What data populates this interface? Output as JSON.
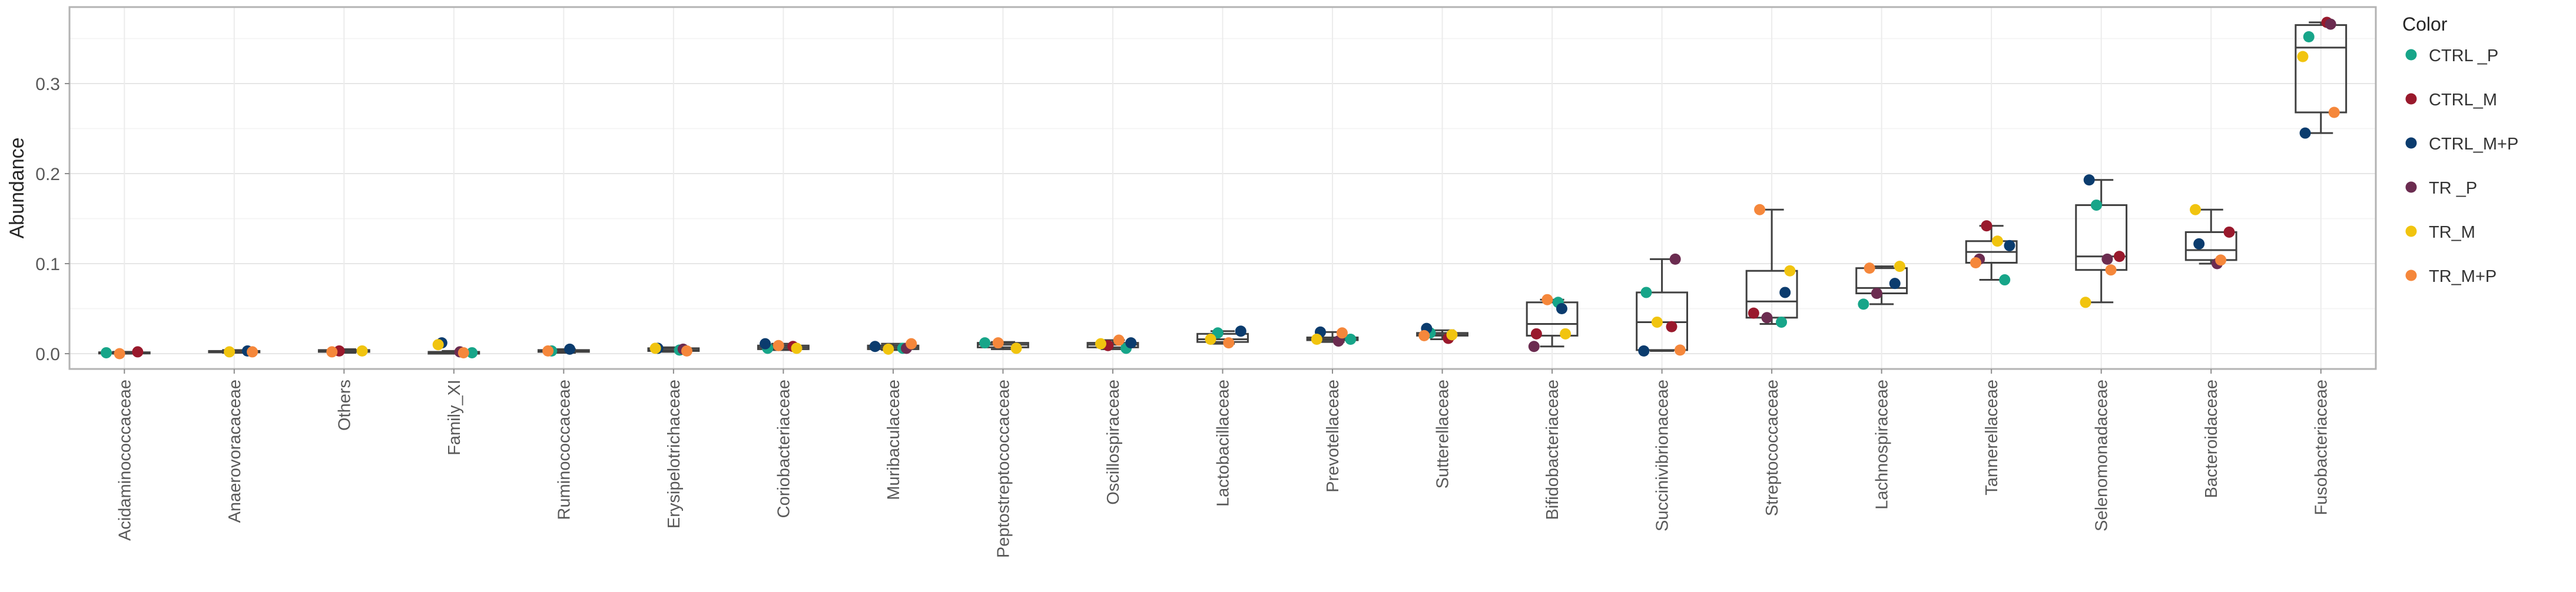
{
  "chart_data": {
    "type": "boxplot",
    "ylabel": "Abundance",
    "xlabel": "",
    "ylim": [
      -0.017,
      0.385
    ],
    "yticks": [
      0.0,
      0.1,
      0.2,
      0.3
    ],
    "ytick_labels": [
      "0.0",
      "0.1",
      "0.2",
      "0.3"
    ],
    "grid": true,
    "legend": {
      "title": "Color",
      "position": "right",
      "entries": [
        {
          "name": "CTRL _P",
          "color": "#17a589"
        },
        {
          "name": "CTRL_M",
          "color": "#99192c"
        },
        {
          "name": "CTRL_M+P",
          "color": "#0b3c6e"
        },
        {
          "name": "TR _P",
          "color": "#6b2c50"
        },
        {
          "name": "TR_M",
          "color": "#f1c40f"
        },
        {
          "name": "TR_M+P",
          "color": "#f5873b"
        }
      ]
    },
    "categories": [
      {
        "label": "Acidaminococcaceae",
        "box": {
          "min": 0.0,
          "q1": 0.0005,
          "median": 0.001,
          "q3": 0.0015,
          "max": 0.002
        },
        "points": [
          {
            "series": "CTRL _P",
            "value": 0.001
          },
          {
            "series": "CTRL_M",
            "value": 0.002
          },
          {
            "series": "TR_M+P",
            "value": 0.0
          }
        ]
      },
      {
        "label": "Anaerovoracaceae",
        "box": {
          "min": 0.001,
          "q1": 0.0015,
          "median": 0.002,
          "q3": 0.003,
          "max": 0.004
        },
        "points": [
          {
            "series": "CTRL_M+P",
            "value": 0.003
          },
          {
            "series": "TR_M",
            "value": 0.002
          },
          {
            "series": "TR_M+P",
            "value": 0.002
          }
        ]
      },
      {
        "label": "Others",
        "box": {
          "min": 0.001,
          "q1": 0.002,
          "median": 0.003,
          "q3": 0.004,
          "max": 0.005
        },
        "points": [
          {
            "series": "CTRL_M",
            "value": 0.003
          },
          {
            "series": "TR_M",
            "value": 0.003
          },
          {
            "series": "TR_M+P",
            "value": 0.002
          }
        ]
      },
      {
        "label": "Family_XI",
        "box": {
          "min": 0.0,
          "q1": 0.0,
          "median": 0.001,
          "q3": 0.002,
          "max": 0.003
        },
        "points": [
          {
            "series": "CTRL _P",
            "value": 0.001
          },
          {
            "series": "CTRL_M+P",
            "value": 0.012
          },
          {
            "series": "TR _P",
            "value": 0.002
          },
          {
            "series": "TR_M",
            "value": 0.01
          },
          {
            "series": "TR_M+P",
            "value": 0.001
          }
        ]
      },
      {
        "label": "Ruminococcaceae",
        "box": {
          "min": 0.001,
          "q1": 0.002,
          "median": 0.003,
          "q3": 0.004,
          "max": 0.005
        },
        "points": [
          {
            "series": "CTRL _P",
            "value": 0.003
          },
          {
            "series": "CTRL_M+P",
            "value": 0.005
          },
          {
            "series": "TR_M+P",
            "value": 0.003
          }
        ]
      },
      {
        "label": "Erysipelotrichaceae",
        "box": {
          "min": 0.002,
          "q1": 0.003,
          "median": 0.004,
          "q3": 0.006,
          "max": 0.007
        },
        "points": [
          {
            "series": "CTRL _P",
            "value": 0.004
          },
          {
            "series": "CTRL_M+P",
            "value": 0.006
          },
          {
            "series": "TR _P",
            "value": 0.005
          },
          {
            "series": "TR_M",
            "value": 0.006
          },
          {
            "series": "TR_M+P",
            "value": 0.003
          }
        ]
      },
      {
        "label": "Coriobacteriaceae",
        "box": {
          "min": 0.004,
          "q1": 0.005,
          "median": 0.007,
          "q3": 0.009,
          "max": 0.011
        },
        "points": [
          {
            "series": "CTRL _P",
            "value": 0.006
          },
          {
            "series": "CTRL_M",
            "value": 0.008
          },
          {
            "series": "CTRL_M+P",
            "value": 0.011
          },
          {
            "series": "TR_M",
            "value": 0.006
          },
          {
            "series": "TR_M+P",
            "value": 0.009
          }
        ]
      },
      {
        "label": "Muribaculaceae",
        "box": {
          "min": 0.004,
          "q1": 0.005,
          "median": 0.007,
          "q3": 0.009,
          "max": 0.011
        },
        "points": [
          {
            "series": "CTRL _P",
            "value": 0.006
          },
          {
            "series": "CTRL_M+P",
            "value": 0.008
          },
          {
            "series": "TR _P",
            "value": 0.006
          },
          {
            "series": "TR_M",
            "value": 0.005
          },
          {
            "series": "TR_M+P",
            "value": 0.011
          }
        ]
      },
      {
        "label": "Peptostreptococcaceae",
        "box": {
          "min": 0.005,
          "q1": 0.007,
          "median": 0.01,
          "q3": 0.012,
          "max": 0.013
        },
        "points": [
          {
            "series": "CTRL _P",
            "value": 0.012
          },
          {
            "series": "TR_M",
            "value": 0.006
          },
          {
            "series": "TR_M+P",
            "value": 0.012
          }
        ]
      },
      {
        "label": "Oscillospiraceae",
        "box": {
          "min": 0.005,
          "q1": 0.007,
          "median": 0.01,
          "q3": 0.012,
          "max": 0.015
        },
        "points": [
          {
            "series": "CTRL _P",
            "value": 0.006
          },
          {
            "series": "CTRL_M",
            "value": 0.009
          },
          {
            "series": "CTRL_M+P",
            "value": 0.012
          },
          {
            "series": "TR_M",
            "value": 0.011
          },
          {
            "series": "TR_M+P",
            "value": 0.015
          }
        ]
      },
      {
        "label": "Lactobacillaceae",
        "box": {
          "min": 0.011,
          "q1": 0.013,
          "median": 0.016,
          "q3": 0.022,
          "max": 0.025
        },
        "points": [
          {
            "series": "CTRL _P",
            "value": 0.023
          },
          {
            "series": "CTRL_M+P",
            "value": 0.025
          },
          {
            "series": "TR_M",
            "value": 0.016
          },
          {
            "series": "TR_M+P",
            "value": 0.012
          }
        ]
      },
      {
        "label": "Prevotellaceae",
        "box": {
          "min": 0.013,
          "q1": 0.015,
          "median": 0.016,
          "q3": 0.018,
          "max": 0.024
        },
        "points": [
          {
            "series": "CTRL _P",
            "value": 0.016
          },
          {
            "series": "CTRL_M+P",
            "value": 0.024
          },
          {
            "series": "TR _P",
            "value": 0.014
          },
          {
            "series": "TR_M",
            "value": 0.016
          },
          {
            "series": "TR_M+P",
            "value": 0.023
          }
        ]
      },
      {
        "label": "Sutterellaceae",
        "box": {
          "min": 0.016,
          "q1": 0.02,
          "median": 0.021,
          "q3": 0.023,
          "max": 0.026
        },
        "points": [
          {
            "series": "CTRL _P",
            "value": 0.023
          },
          {
            "series": "CTRL_M",
            "value": 0.017
          },
          {
            "series": "CTRL_M+P",
            "value": 0.028
          },
          {
            "series": "TR_M",
            "value": 0.021
          },
          {
            "series": "TR_M+P",
            "value": 0.02
          }
        ]
      },
      {
        "label": "Bifidobacteriaceae",
        "box": {
          "min": 0.008,
          "q1": 0.02,
          "median": 0.033,
          "q3": 0.057,
          "max": 0.06
        },
        "points": [
          {
            "series": "CTRL _P",
            "value": 0.057
          },
          {
            "series": "CTRL_M",
            "value": 0.022
          },
          {
            "series": "CTRL_M+P",
            "value": 0.05
          },
          {
            "series": "TR _P",
            "value": 0.008
          },
          {
            "series": "TR_M",
            "value": 0.022
          },
          {
            "series": "TR_M+P",
            "value": 0.06
          }
        ]
      },
      {
        "label": "Succinivibrionaceae",
        "box": {
          "min": 0.003,
          "q1": 0.004,
          "median": 0.035,
          "q3": 0.068,
          "max": 0.105
        },
        "points": [
          {
            "series": "CTRL _P",
            "value": 0.068
          },
          {
            "series": "CTRL_M",
            "value": 0.03
          },
          {
            "series": "CTRL_M+P",
            "value": 0.003
          },
          {
            "series": "TR _P",
            "value": 0.105
          },
          {
            "series": "TR_M",
            "value": 0.035
          },
          {
            "series": "TR_M+P",
            "value": 0.004
          }
        ]
      },
      {
        "label": "Streptococcaceae",
        "box": {
          "min": 0.033,
          "q1": 0.04,
          "median": 0.058,
          "q3": 0.092,
          "max": 0.16
        },
        "points": [
          {
            "series": "CTRL _P",
            "value": 0.035
          },
          {
            "series": "CTRL_M",
            "value": 0.045
          },
          {
            "series": "CTRL_M+P",
            "value": 0.068
          },
          {
            "series": "TR _P",
            "value": 0.04
          },
          {
            "series": "TR_M",
            "value": 0.092
          },
          {
            "series": "TR_M+P",
            "value": 0.16
          }
        ]
      },
      {
        "label": "Lachnospiraceae",
        "box": {
          "min": 0.055,
          "q1": 0.067,
          "median": 0.073,
          "q3": 0.095,
          "max": 0.097
        },
        "points": [
          {
            "series": "CTRL _P",
            "value": 0.055
          },
          {
            "series": "CTRL_M+P",
            "value": 0.078
          },
          {
            "series": "TR _P",
            "value": 0.067
          },
          {
            "series": "TR_M",
            "value": 0.097
          },
          {
            "series": "TR_M+P",
            "value": 0.095
          }
        ]
      },
      {
        "label": "Tannerellaceae",
        "box": {
          "min": 0.082,
          "q1": 0.101,
          "median": 0.113,
          "q3": 0.125,
          "max": 0.142
        },
        "points": [
          {
            "series": "CTRL _P",
            "value": 0.082
          },
          {
            "series": "CTRL_M",
            "value": 0.142
          },
          {
            "series": "CTRL_M+P",
            "value": 0.12
          },
          {
            "series": "TR _P",
            "value": 0.105
          },
          {
            "series": "TR_M",
            "value": 0.125
          },
          {
            "series": "TR_M+P",
            "value": 0.101
          }
        ]
      },
      {
        "label": "Selenomonadaceae",
        "box": {
          "min": 0.057,
          "q1": 0.093,
          "median": 0.108,
          "q3": 0.165,
          "max": 0.193
        },
        "points": [
          {
            "series": "CTRL _P",
            "value": 0.165
          },
          {
            "series": "CTRL_M",
            "value": 0.108
          },
          {
            "series": "CTRL_M+P",
            "value": 0.193
          },
          {
            "series": "TR _P",
            "value": 0.105
          },
          {
            "series": "TR_M",
            "value": 0.057
          },
          {
            "series": "TR_M+P",
            "value": 0.093
          }
        ]
      },
      {
        "label": "Bacteroidaceae",
        "box": {
          "min": 0.1,
          "q1": 0.104,
          "median": 0.115,
          "q3": 0.135,
          "max": 0.16
        },
        "points": [
          {
            "series": "CTRL_M",
            "value": 0.135
          },
          {
            "series": "CTRL_M+P",
            "value": 0.122
          },
          {
            "series": "TR _P",
            "value": 0.1
          },
          {
            "series": "TR_M",
            "value": 0.16
          },
          {
            "series": "TR_M+P",
            "value": 0.104
          }
        ]
      },
      {
        "label": "Fusobacteriaceae",
        "box": {
          "min": 0.245,
          "q1": 0.268,
          "median": 0.34,
          "q3": 0.365,
          "max": 0.368
        },
        "points": [
          {
            "series": "CTRL _P",
            "value": 0.352
          },
          {
            "series": "CTRL_M",
            "value": 0.368
          },
          {
            "series": "CTRL_M+P",
            "value": 0.245
          },
          {
            "series": "TR _P",
            "value": 0.366
          },
          {
            "series": "TR_M",
            "value": 0.33
          },
          {
            "series": "TR_M+P",
            "value": 0.268
          }
        ]
      }
    ]
  }
}
